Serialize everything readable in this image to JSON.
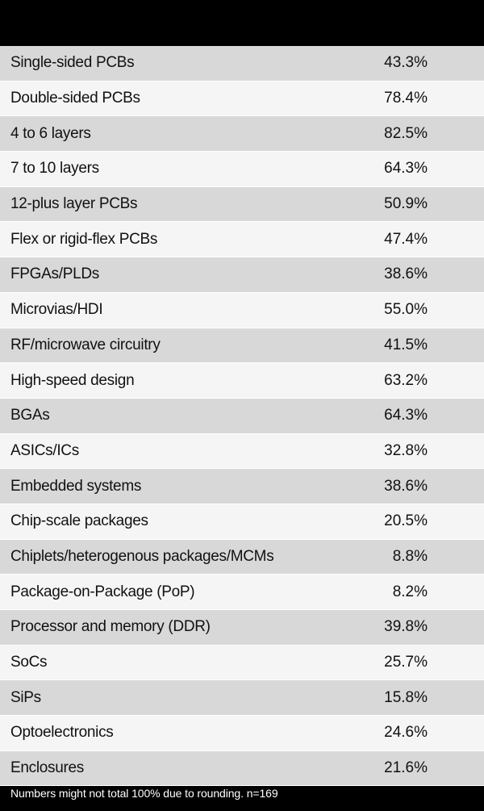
{
  "rows": [
    {
      "label": "Single-sided PCBs",
      "value": "43.3%"
    },
    {
      "label": "Double-sided PCBs",
      "value": "78.4%"
    },
    {
      "label": "4 to 6 layers",
      "value": "82.5%"
    },
    {
      "label": "7 to 10 layers",
      "value": "64.3%"
    },
    {
      "label": "12-plus layer PCBs",
      "value": "50.9%"
    },
    {
      "label": "Flex or rigid-flex PCBs",
      "value": "47.4%"
    },
    {
      "label": "FPGAs/PLDs",
      "value": "38.6%"
    },
    {
      "label": "Microvias/HDI",
      "value": "55.0%"
    },
    {
      "label": "RF/microwave circuitry",
      "value": "41.5%"
    },
    {
      "label": "High-speed design",
      "value": "63.2%"
    },
    {
      "label": "BGAs",
      "value": "64.3%"
    },
    {
      "label": "ASICs/ICs",
      "value": "32.8%"
    },
    {
      "label": "Embedded systems",
      "value": "38.6%"
    },
    {
      "label": "Chip-scale packages",
      "value": "20.5%"
    },
    {
      "label": "Chiplets/heterogenous packages/MCMs",
      "value": "8.8%"
    },
    {
      "label": "Package-on-Package (PoP)",
      "value": "8.2%"
    },
    {
      "label": "Processor and memory (DDR)",
      "value": "39.8%"
    },
    {
      "label": "SoCs",
      "value": "25.7%"
    },
    {
      "label": "SiPs",
      "value": "15.8%"
    },
    {
      "label": "Optoelectronics",
      "value": "24.6%"
    },
    {
      "label": "Enclosures",
      "value": "21.6%"
    }
  ],
  "footnote": "Numbers might not total 100% due to rounding. n=169",
  "colors": {
    "background": "#000000",
    "row_dark": "#d8d8d8",
    "row_light": "#f5f5f5",
    "text": "#111111",
    "footnote_text": "#ffffff"
  }
}
